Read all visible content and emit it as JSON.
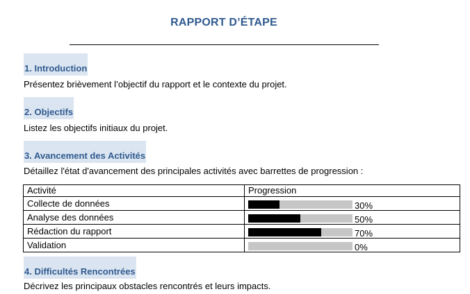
{
  "colors": {
    "heading_text": "#2f5a8f",
    "title_text": "#2f5a8f",
    "heading_background": "#dbe5f1"
  },
  "title": "RAPPORT D’ÉTAPE",
  "sections": [
    {
      "heading": "1. Introduction",
      "text": "Présentez brièvement l’objectif du rapport et le contexte du projet."
    },
    {
      "heading": "2. Objectifs",
      "text": "Listez les objectifs initiaux du projet."
    },
    {
      "heading": "3. Avancement des Activités",
      "text": "Détaillez l'état d'avancement des principales activités avec barrettes de progression :"
    },
    {
      "heading": "4. Difficultés Rencontrées",
      "text": "Décrivez les principaux obstacles rencontrés et leurs impacts."
    }
  ],
  "table": {
    "headers": [
      "Activité",
      "Progression"
    ],
    "rows": [
      {
        "activity": "Collecte de données",
        "progress": 30,
        "label": "30%"
      },
      {
        "activity": "Analyse des données",
        "progress": 50,
        "label": "50%"
      },
      {
        "activity": "Rédaction du rapport",
        "progress": 70,
        "label": "70%"
      },
      {
        "activity": "Validation",
        "progress": 0,
        "label": "0%"
      }
    ]
  }
}
